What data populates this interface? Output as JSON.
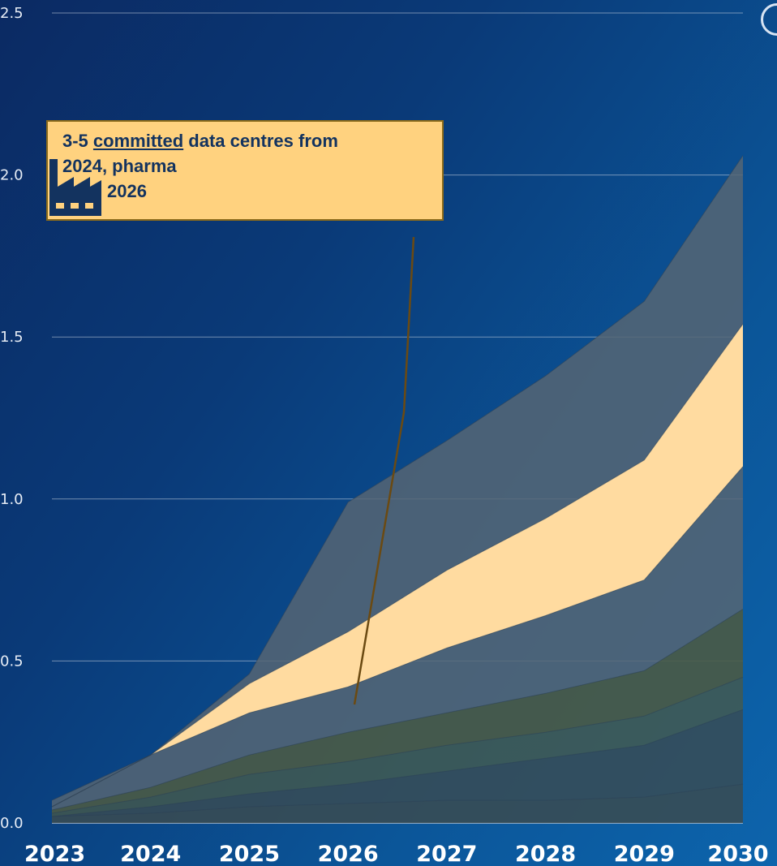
{
  "chart_data": {
    "type": "area",
    "x": [
      "2023",
      "2024",
      "2025",
      "2026",
      "2027",
      "2028",
      "2029",
      "2030"
    ],
    "ylim": [
      0,
      2.5
    ],
    "y_ticks": [
      "0.0",
      "0.5",
      "1.0",
      "1.5",
      "2.0",
      "2.5"
    ],
    "grid": true,
    "colors": {
      "upper_band": "#566573",
      "highlight_band": "#ffdba0",
      "green_band": "#4a5a45",
      "bottom_band": "#3b4b50",
      "grid_line": "#c9d3e0"
    },
    "series": [
      {
        "values": [
          0.07,
          0.21,
          0.46,
          0.99,
          1.18,
          1.38,
          1.61,
          2.06
        ]
      },
      {
        "values": [
          0.05,
          0.21,
          0.43,
          0.59,
          0.78,
          0.94,
          1.12,
          1.54
        ]
      },
      {
        "values": [
          0.05,
          0.21,
          0.34,
          0.42,
          0.54,
          0.64,
          0.75,
          1.1
        ]
      },
      {
        "values": [
          0.04,
          0.11,
          0.21,
          0.28,
          0.34,
          0.4,
          0.47,
          0.66
        ]
      },
      {
        "values": [
          0.03,
          0.08,
          0.15,
          0.19,
          0.24,
          0.28,
          0.33,
          0.45
        ]
      },
      {
        "values": [
          0.02,
          0.05,
          0.09,
          0.12,
          0.16,
          0.2,
          0.24,
          0.35
        ]
      },
      {
        "values": [
          0.02,
          0.03,
          0.05,
          0.06,
          0.07,
          0.07,
          0.08,
          0.12
        ]
      }
    ],
    "annotation": {
      "line1_before": "3-5 ",
      "line1_underlined": "committed",
      "line1_after": " data centres from",
      "line2": "2024, pharma",
      "line3": "from 2026",
      "icon": "factory-icon"
    }
  }
}
